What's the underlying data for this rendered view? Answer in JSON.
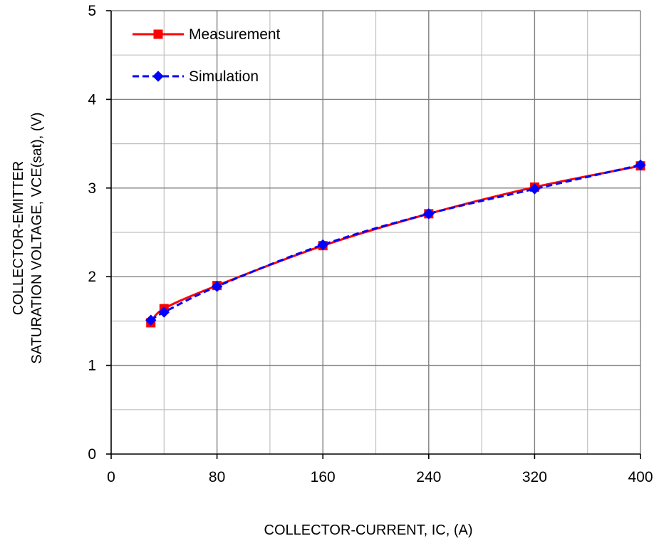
{
  "chart_data": {
    "type": "line",
    "xlabel": "COLLECTOR-CURRENT,  IC, (A)",
    "ylabel_lines": [
      "COLLECTOR-EMITTER",
      "SATURATION  VOLTAGE,  VCE(sat),  (V)"
    ],
    "xlim": [
      0,
      400
    ],
    "ylim": [
      0,
      5
    ],
    "xticks": [
      0,
      80,
      160,
      240,
      320,
      400
    ],
    "yticks": [
      0,
      1,
      2,
      3,
      4,
      5
    ],
    "x_minor_grid": [
      40,
      120,
      200,
      280,
      360
    ],
    "y_minor_grid": [
      0.5,
      1.5,
      2.5,
      3.5,
      4.5
    ],
    "grid": true,
    "legend_position": "top-left",
    "series": [
      {
        "name": "Measurement",
        "color": "#ff0000",
        "marker": "square",
        "line_style": "solid",
        "x": [
          30,
          40,
          80,
          160,
          240,
          320,
          400
        ],
        "y": [
          1.48,
          1.64,
          1.9,
          2.35,
          2.71,
          3.01,
          3.25
        ]
      },
      {
        "name": "Simulation",
        "color": "#0000ff",
        "marker": "diamond",
        "line_style": "dashed",
        "x": [
          30,
          40,
          80,
          160,
          240,
          320,
          400
        ],
        "y": [
          1.51,
          1.6,
          1.89,
          2.36,
          2.71,
          2.99,
          3.26
        ]
      }
    ]
  }
}
